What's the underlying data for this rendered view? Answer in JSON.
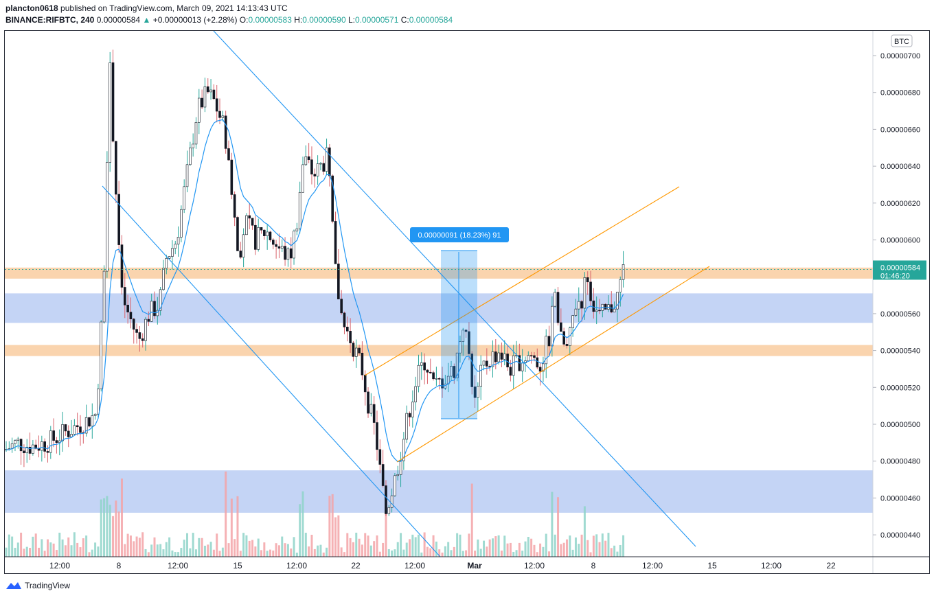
{
  "header": {
    "author": "plancton0618",
    "published_text": "published on TradingView.com, March 09, 2021 14:13:43 UTC",
    "symbol": "BINANCE:RIFBTC, 240",
    "last": "0.00000584",
    "change": "+0.00000013 (+2.28%)",
    "o_label": "O:",
    "o_value": "0.00000583",
    "h_label": "H:",
    "h_value": "0.00000590",
    "l_label": "L:",
    "l_value": "0.00000571",
    "c_label": "C:",
    "c_value": "0.00000584"
  },
  "footer": {
    "brand": "TradingView"
  },
  "chart_data": {
    "type": "candlestick",
    "currency_badge": "BTC",
    "ylim": [
      4.3e-06,
      7.1e-06
    ],
    "y_ticks": [
      "0.00000700",
      "0.00000680",
      "0.00000660",
      "0.00000640",
      "0.00000620",
      "0.00000600",
      "0.00000580",
      "0.00000560",
      "0.00000540",
      "0.00000520",
      "0.00000500",
      "0.00000480",
      "0.00000460",
      "0.00000440"
    ],
    "x_ticks": [
      "12:00",
      "8",
      "12:00",
      "15",
      "12:00",
      "22",
      "12:00",
      "Mar",
      "12:00",
      "8",
      "12:00",
      "15",
      "12:00",
      "22"
    ],
    "price_label": "0.00000584",
    "countdown": "01:46:20",
    "measure_label": "0.00000091 (18.23%) 91",
    "zones": [
      {
        "low": 5.79e-06,
        "high": 5.85e-06,
        "color": "#f9c99a"
      },
      {
        "low": 5.55e-06,
        "high": 5.71e-06,
        "color": "#b5c9f3"
      },
      {
        "low": 5.37e-06,
        "high": 5.43e-06,
        "color": "#f9c99a"
      },
      {
        "low": 4.52e-06,
        "high": 4.75e-06,
        "color": "#b5c9f3"
      }
    ],
    "colors": {
      "up": "#26a69a",
      "down": "#ef5350",
      "ma": "#2196f3",
      "channel": "#ff9800",
      "trend": "#2196f3",
      "price": "#26a69a"
    }
  }
}
